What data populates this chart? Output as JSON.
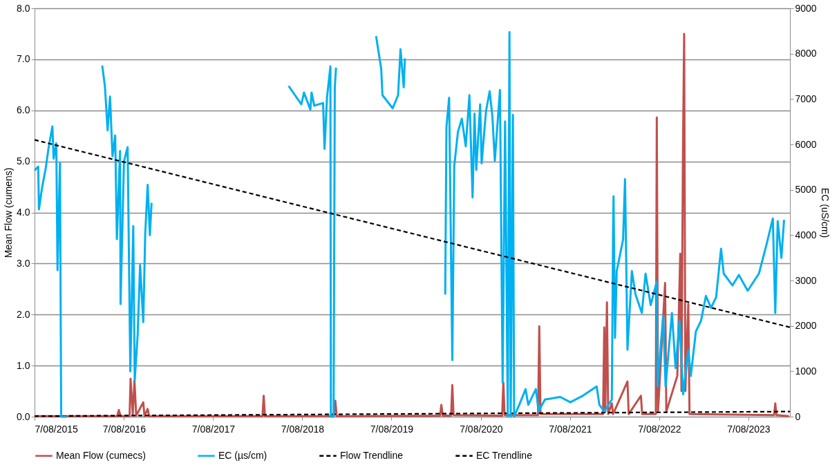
{
  "chart_data": {
    "type": "line",
    "ylabel": "Mean Flow (cumens)",
    "y2label": "EC (uS/cm)",
    "xlim": [
      "2015-08-07",
      "2024-01-24"
    ],
    "xticks": [
      {
        "value": "2015-08-07",
        "label": "7/08/2015"
      },
      {
        "value": "2016-08-07",
        "label": "7/08/2016"
      },
      {
        "value": "2017-08-07",
        "label": "7/08/2017"
      },
      {
        "value": "2018-08-07",
        "label": "7/08/2018"
      },
      {
        "value": "2019-08-07",
        "label": "7/08/2019"
      },
      {
        "value": "2020-08-07",
        "label": "7/08/2020"
      },
      {
        "value": "2021-08-07",
        "label": "7/08/2021"
      },
      {
        "value": "2022-08-07",
        "label": "7/08/2022"
      },
      {
        "value": "2023-08-07",
        "label": "7/08/2023"
      }
    ],
    "ylim": [
      0,
      8
    ],
    "yticks": [
      {
        "value": 0,
        "label": "0.0"
      },
      {
        "value": 1,
        "label": "1.0"
      },
      {
        "value": 2,
        "label": "2.0"
      },
      {
        "value": 3,
        "label": "3.0"
      },
      {
        "value": 4,
        "label": "4.0"
      },
      {
        "value": 5,
        "label": "5.0"
      },
      {
        "value": 6,
        "label": "6.0"
      },
      {
        "value": 7,
        "label": "7.0"
      },
      {
        "value": 8,
        "label": "8.0"
      }
    ],
    "y2lim": [
      0,
      9000
    ],
    "y2ticks": [
      0,
      1000,
      2000,
      3000,
      4000,
      5000,
      6000,
      7000,
      8000,
      9000
    ],
    "grid": "y",
    "legend": "bottom",
    "series": [
      {
        "name": "Mean Flow (cumecs)",
        "color": "#c0504d",
        "line_style": "solid",
        "x": [
          "2015-08-07",
          "2016-07-10",
          "2016-07-17",
          "2016-07-24",
          "2016-08-30",
          "2016-09-03",
          "2016-09-12",
          "2016-09-19",
          "2016-09-26",
          "2016-10-25",
          "2016-10-30",
          "2016-11-12",
          "2016-11-18",
          "2018-02-25",
          "2018-03-02",
          "2018-03-07",
          "2018-12-14",
          "2018-12-20",
          "2018-12-26",
          "2020-02-22",
          "2020-02-27",
          "2020-03-04",
          "2020-04-07",
          "2020-04-12",
          "2020-04-17",
          "2020-11-02",
          "2020-11-07",
          "2020-11-12",
          "2021-03-29",
          "2021-04-03",
          "2021-04-08",
          "2021-12-20",
          "2021-12-25",
          "2021-12-29",
          "2022-01-05",
          "2022-01-10",
          "2022-01-25",
          "2022-01-30",
          "2022-03-30",
          "2022-04-04",
          "2022-05-24",
          "2022-05-29",
          "2022-07-24",
          "2022-07-28",
          "2022-08-02",
          "2022-08-31",
          "2022-09-05",
          "2022-10-20",
          "2022-11-01",
          "2022-11-06",
          "2022-11-12",
          "2022-11-17",
          "2022-11-22",
          "2022-12-04",
          "2022-12-09",
          "2023-11-20",
          "2023-11-25",
          "2023-11-30",
          "2024-01-20"
        ],
        "values": [
          0.01,
          0.01,
          0.13,
          0.01,
          0.01,
          0.74,
          0.05,
          0.71,
          0.02,
          0.28,
          0.01,
          0.15,
          0.01,
          0.01,
          0.41,
          0.01,
          0.01,
          0.31,
          0.01,
          0.02,
          0.23,
          0.02,
          0.02,
          0.62,
          0.03,
          0.02,
          0.67,
          0.03,
          0.03,
          1.77,
          0.05,
          0.05,
          1.75,
          0.1,
          2.24,
          0.05,
          0.26,
          0.05,
          0.69,
          0.05,
          0.41,
          0.05,
          0.05,
          5.86,
          0.1,
          2.62,
          0.1,
          0.8,
          3.19,
          0.5,
          5.09,
          7.5,
          0.5,
          2.21,
          0.05,
          0.03,
          0.26,
          0.03,
          0.01
        ]
      },
      {
        "name": "EC (µs/cm)",
        "color": "#00b0f0",
        "line_style": "solid",
        "axis": "y2",
        "x": [
          "2015-08-07",
          "2015-08-22",
          "2015-08-25",
          "2015-09-07",
          "2015-09-22",
          "2015-10-03",
          "2015-10-19",
          "2015-10-24",
          "2015-11-04",
          "2015-11-09",
          "2015-11-14",
          "2015-11-19",
          "2015-11-24",
          "2015-12-15",
          "2016-03-01",
          "2016-05-10",
          "2016-05-21",
          "2016-06-01",
          "2016-06-11",
          "2016-06-21",
          "2016-07-02",
          "2016-07-09",
          "2016-07-22",
          "2016-07-24",
          "2016-08-07",
          "2016-08-22",
          "2016-09-02",
          "2016-09-14",
          "2016-09-20",
          "2016-10-02",
          "2016-10-12",
          "2016-10-25",
          "2016-11-02",
          "2016-11-12",
          "2016-11-21",
          "2016-11-28",
          "2017-08-01",
          "2018-06-12",
          "2018-08-03",
          "2018-08-14",
          "2018-09-09",
          "2018-09-14",
          "2018-09-25",
          "2018-10-31",
          "2018-11-06",
          "2018-11-16",
          "2018-11-30",
          "2018-12-02",
          "2018-12-13",
          "2018-12-18",
          "2018-12-23",
          "2019-03-01",
          "2019-06-05",
          "2019-06-26",
          "2019-07-01",
          "2019-08-12",
          "2019-09-03",
          "2019-09-13",
          "2019-09-26",
          "2019-10-01",
          "2019-12-01",
          "2020-03-14",
          "2020-03-19",
          "2020-03-30",
          "2020-04-12",
          "2020-04-20",
          "2020-05-05",
          "2020-05-21",
          "2020-06-06",
          "2020-06-21",
          "2020-07-04",
          "2020-07-12",
          "2020-07-19",
          "2020-08-04",
          "2020-08-10",
          "2020-08-28",
          "2020-09-12",
          "2020-09-23",
          "2020-10-03",
          "2020-10-24",
          "2020-11-04",
          "2020-11-14",
          "2020-11-25",
          "2020-12-02",
          "2020-12-07",
          "2020-12-16",
          "2020-12-21",
          "2021-01-11",
          "2021-02-06",
          "2021-02-17",
          "2021-03-20",
          "2021-03-31",
          "2021-04-26",
          "2021-06-28",
          "2021-08-08",
          "2021-09-29",
          "2021-11-24",
          "2021-12-05",
          "2021-12-25",
          "2022-01-25",
          "2022-01-30",
          "2022-02-01",
          "2022-02-07",
          "2022-02-14",
          "2022-03-12",
          "2022-03-20",
          "2022-03-30",
          "2022-04-17",
          "2022-05-02",
          "2022-05-28",
          "2022-06-12",
          "2022-07-03",
          "2022-07-28",
          "2022-07-31",
          "2022-08-23",
          "2022-09-02",
          "2022-09-28",
          "2022-10-13",
          "2022-10-29",
          "2022-11-13",
          "2022-12-04",
          "2022-12-14",
          "2023-01-04",
          "2023-01-25",
          "2023-02-14",
          "2023-03-07",
          "2023-03-28",
          "2023-04-17",
          "2023-04-28",
          "2023-06-03",
          "2023-06-29",
          "2023-08-04",
          "2023-09-19",
          "2023-10-20",
          "2023-11-15",
          "2023-11-25",
          "2023-12-05",
          "2023-12-20",
          "2023-12-31"
        ],
        "values": [
          5425,
          5511,
          4569,
          5054,
          5483,
          5911,
          6396,
          5683,
          6025,
          3227,
          4483,
          5597,
          0,
          0,
          null,
          7738,
          7281,
          6311,
          7053,
          5740,
          6196,
          3912,
          5854,
          2484,
          5625,
          5940,
          999,
          4198,
          800,
          1799,
          3341,
          2084,
          4026,
          5111,
          3998,
          4712,
          null,
          7288,
          6883,
          7143,
          6767,
          7143,
          6854,
          6912,
          5900,
          7028,
          7722,
          0,
          0,
          7259,
          7693,
          null,
          8387,
          7664,
          7085,
          6796,
          7085,
          8098,
          7259,
          7895,
          null,
          2690,
          6391,
          7028,
          1244,
          5524,
          6276,
          6565,
          5958,
          7085,
          4830,
          6680,
          5437,
          6883,
          5582,
          6738,
          7172,
          6623,
          5640,
          7201,
          752,
          6507,
          0,
          8474,
          0,
          6652,
          0,
          260,
          607,
          260,
          607,
          116,
          376,
          434,
          318,
          463,
          665,
          260,
          116,
          376,
          4020,
          4859,
          1735,
          3210,
          3904,
          5235,
          1475,
          3210,
          2690,
          2285,
          3152,
          2458,
          2979,
          665,
          2227,
          665,
          2285,
          1070,
          2111,
          492,
          1475,
          897,
          1880,
          2111,
          2661,
          2400,
          2632,
          3702,
          3152,
          2892,
          3123,
          2776,
          3152,
          3789,
          4367,
          2285,
          4309,
          3499,
          4338
        ]
      },
      {
        "name": "Flow Trendline",
        "color": "#000000",
        "line_style": "dashed",
        "x": [
          "2015-08-07",
          "2024-01-24"
        ],
        "values": [
          0.01,
          0.1
        ]
      },
      {
        "name": "EC Trendline",
        "color": "#000000",
        "line_style": "dashed",
        "axis": "y2",
        "x": [
          "2015-08-07",
          "2024-01-24"
        ],
        "values": [
          6100,
          1970
        ]
      }
    ]
  }
}
